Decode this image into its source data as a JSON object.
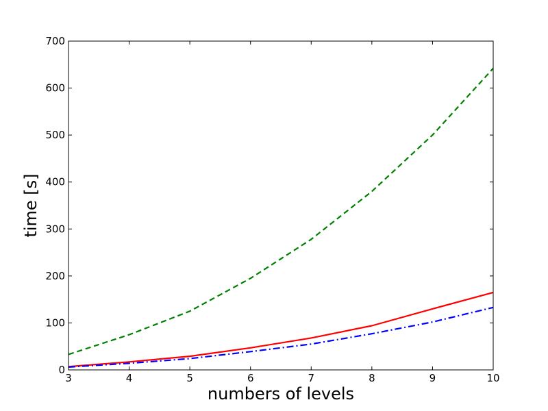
{
  "chart_data": {
    "type": "line",
    "title": "",
    "xlabel": "numbers of levels",
    "ylabel": "time [s]",
    "xlim": [
      3,
      10
    ],
    "ylim": [
      0,
      700
    ],
    "xticks": [
      3,
      4,
      5,
      6,
      7,
      8,
      9,
      10
    ],
    "yticks": [
      0,
      100,
      200,
      300,
      400,
      500,
      600,
      700
    ],
    "grid": false,
    "legend": false,
    "series": [
      {
        "color": "#008000",
        "style": "dashed",
        "x": [
          3,
          4,
          5,
          6,
          7,
          8,
          9,
          10
        ],
        "values": [
          33,
          75,
          125,
          195,
          278,
          380,
          500,
          642
        ]
      },
      {
        "color": "#ff0000",
        "style": "solid",
        "x": [
          3,
          4,
          5,
          6,
          7,
          8,
          9,
          10
        ],
        "values": [
          7,
          17,
          29,
          47,
          68,
          94,
          130,
          165
        ]
      },
      {
        "color": "#0000ff",
        "style": "dashdot",
        "x": [
          3,
          4,
          5,
          6,
          7,
          8,
          9,
          10
        ],
        "values": [
          6,
          14,
          24,
          39,
          55,
          77,
          102,
          133
        ]
      }
    ]
  }
}
